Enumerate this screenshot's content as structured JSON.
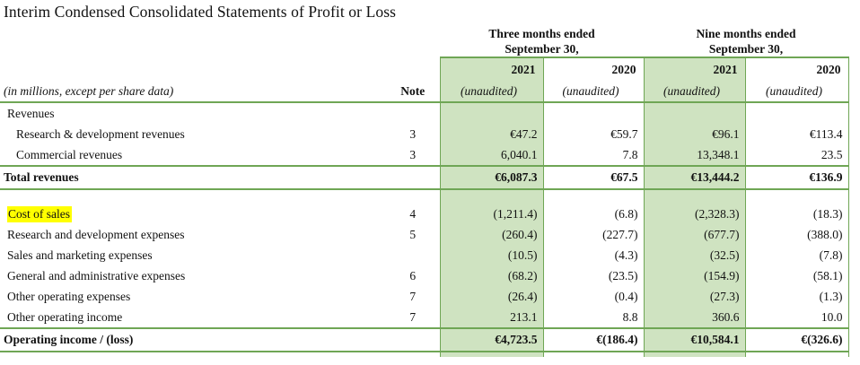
{
  "title": "Interim Condensed Consolidated Statements of Profit or Loss",
  "colors": {
    "column_highlight_fill": "#cfe3c1",
    "table_border_green": "#6fa655",
    "label_highlight_yellow": "#ffff00"
  },
  "table": {
    "group_headers": [
      {
        "line1": "Three months ended",
        "line2": "September 30,"
      },
      {
        "line1": "Nine months ended",
        "line2": "September 30,"
      }
    ],
    "year_headers": [
      "2021",
      "2020",
      "2021",
      "2020"
    ],
    "meta": {
      "left_note": "(in millions, except per share data)",
      "note_label": "Note",
      "unaudited": "(unaudited)"
    },
    "rows": [
      {
        "label": "Revenues",
        "note": "",
        "v": [
          "",
          "",
          "",
          ""
        ],
        "type": "plain"
      },
      {
        "label": "Research & development revenues",
        "note": "3",
        "v": [
          "€47.2",
          "€59.7",
          "€96.1",
          "€113.4"
        ],
        "type": "sub"
      },
      {
        "label": "Commercial revenues",
        "note": "3",
        "v": [
          "6,040.1",
          "7.8",
          "13,348.1",
          "23.5"
        ],
        "type": "sub"
      },
      {
        "label": "Total revenues",
        "note": "",
        "v": [
          "€6,087.3",
          "€67.5",
          "€13,444.2",
          "€136.9"
        ],
        "type": "total"
      },
      {
        "label": "",
        "note": "",
        "v": [
          "",
          "",
          "",
          ""
        ],
        "type": "spacer"
      },
      {
        "label": "Cost of sales",
        "note": "4",
        "v": [
          "(1,211.4)",
          "(6.8)",
          "(2,328.3)",
          "(18.3)"
        ],
        "type": "plain",
        "highlight": true
      },
      {
        "label": "Research and development expenses",
        "note": "5",
        "v": [
          "(260.4)",
          "(227.7)",
          "(677.7)",
          "(388.0)"
        ],
        "type": "plain"
      },
      {
        "label": "Sales and marketing expenses",
        "note": "",
        "v": [
          "(10.5)",
          "(4.3)",
          "(32.5)",
          "(7.8)"
        ],
        "type": "plain"
      },
      {
        "label": "General and administrative expenses",
        "note": "6",
        "v": [
          "(68.2)",
          "(23.5)",
          "(154.9)",
          "(58.1)"
        ],
        "type": "plain"
      },
      {
        "label": "Other operating expenses",
        "note": "7",
        "v": [
          "(26.4)",
          "(0.4)",
          "(27.3)",
          "(1.3)"
        ],
        "type": "plain"
      },
      {
        "label": "Other operating income",
        "note": "7",
        "v": [
          "213.1",
          "8.8",
          "360.6",
          "10.0"
        ],
        "type": "plain"
      },
      {
        "label": "Operating income / (loss)",
        "note": "",
        "v": [
          "€4,723.5",
          "€(186.4)",
          "€10,584.1",
          "€(326.6)"
        ],
        "type": "total"
      },
      {
        "label": "",
        "note": "",
        "v": [
          "",
          "",
          "",
          ""
        ],
        "type": "bottom-partial"
      }
    ]
  }
}
